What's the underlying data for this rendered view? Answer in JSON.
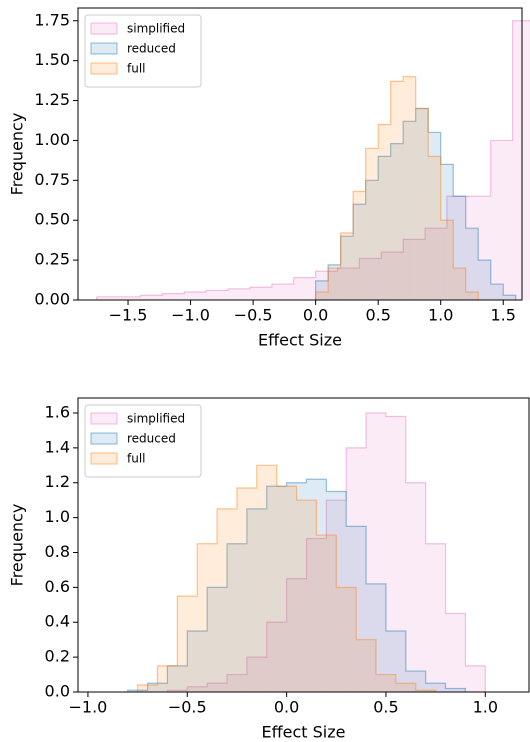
{
  "chart_data": [
    {
      "type": "histogram",
      "xlabel": "Effect Size",
      "ylabel": "Frequency",
      "xlim": [
        -1.9,
        1.65
      ],
      "ylim": [
        0,
        1.83
      ],
      "xticks": [
        {
          "value": -1.5,
          "label": "−1.5"
        },
        {
          "value": -1,
          "label": "−1.0"
        },
        {
          "value": -0.5,
          "label": "−0.5"
        },
        {
          "value": 0,
          "label": "0.0"
        },
        {
          "value": 0.5,
          "label": "0.5"
        },
        {
          "value": 1,
          "label": "1.0"
        },
        {
          "value": 1.5,
          "label": "1.5"
        }
      ],
      "yticks": [
        {
          "value": 0,
          "label": "0.00"
        },
        {
          "value": 0.25,
          "label": "0.25"
        },
        {
          "value": 0.5,
          "label": "0.50"
        },
        {
          "value": 0.75,
          "label": "0.75"
        },
        {
          "value": 1,
          "label": "1.00"
        },
        {
          "value": 1.25,
          "label": "1.25"
        },
        {
          "value": 1.5,
          "label": "1.50"
        },
        {
          "value": 1.75,
          "label": "1.75"
        }
      ],
      "legend": "upper left",
      "series": [
        {
          "name": "simplified",
          "color": "#e377c2",
          "bins": [
            -1.75,
            -1.575,
            -1.4,
            -1.225,
            -1.05,
            -0.875,
            -0.7,
            -0.525,
            -0.35,
            -0.175,
            0,
            0.175,
            0.35,
            0.525,
            0.7,
            0.875,
            1.05,
            1.225,
            1.4,
            1.575,
            1.75
          ],
          "values": [
            0.02,
            0.02,
            0.03,
            0.04,
            0.05,
            0.06,
            0.07,
            0.08,
            0.1,
            0.14,
            0.18,
            0.2,
            0.26,
            0.3,
            0.38,
            0.45,
            0.65,
            0.65,
            1.0,
            1.75
          ]
        },
        {
          "name": "reduced",
          "color": "#1f77b4",
          "bins": [
            0,
            0.1,
            0.2,
            0.3,
            0.4,
            0.5,
            0.6,
            0.7,
            0.8,
            0.9,
            1.0,
            1.1,
            1.2,
            1.3,
            1.4,
            1.5,
            1.6
          ],
          "values": [
            0.12,
            0.22,
            0.4,
            0.6,
            0.75,
            0.9,
            0.98,
            1.12,
            1.2,
            1.05,
            0.85,
            0.65,
            0.45,
            0.25,
            0.1,
            0.03
          ]
        },
        {
          "name": "full",
          "color": "#ff7f0e",
          "bins": [
            0,
            0.1,
            0.2,
            0.3,
            0.4,
            0.5,
            0.6,
            0.7,
            0.8,
            0.9,
            1.0,
            1.1,
            1.2,
            1.3
          ],
          "values": [
            0.05,
            0.2,
            0.42,
            0.68,
            0.95,
            1.1,
            1.37,
            1.4,
            1.2,
            0.9,
            0.5,
            0.2,
            0.05
          ]
        }
      ]
    },
    {
      "type": "histogram",
      "xlabel": "Effect Size",
      "ylabel": "Frequency",
      "xlim": [
        -1.05,
        1.22
      ],
      "ylim": [
        0,
        1.686
      ],
      "xticks": [
        {
          "value": -1,
          "label": "−1.0"
        },
        {
          "value": -0.5,
          "label": "−0.5"
        },
        {
          "value": 0,
          "label": "0.0"
        },
        {
          "value": 0.5,
          "label": "0.5"
        },
        {
          "value": 1,
          "label": "1.0"
        }
      ],
      "yticks": [
        {
          "value": 0,
          "label": "0.0"
        },
        {
          "value": 0.2,
          "label": "0.2"
        },
        {
          "value": 0.4,
          "label": "0.4"
        },
        {
          "value": 0.6,
          "label": "0.6"
        },
        {
          "value": 0.8,
          "label": "0.8"
        },
        {
          "value": 1,
          "label": "1.0"
        },
        {
          "value": 1.2,
          "label": "1.2"
        },
        {
          "value": 1.4,
          "label": "1.4"
        },
        {
          "value": 1.6,
          "label": "1.6"
        }
      ],
      "legend": "upper left",
      "series": [
        {
          "name": "simplified",
          "color": "#e377c2",
          "bins": [
            -0.6,
            -0.5,
            -0.4,
            -0.3,
            -0.2,
            -0.1,
            0,
            0.1,
            0.2,
            0.3,
            0.4,
            0.5,
            0.6,
            0.7,
            0.8,
            0.9,
            1.0
          ],
          "values": [
            0.01,
            0.03,
            0.05,
            0.1,
            0.2,
            0.4,
            0.65,
            0.88,
            1.1,
            1.4,
            1.6,
            1.58,
            1.2,
            0.85,
            0.45,
            0.15
          ]
        },
        {
          "name": "reduced",
          "color": "#1f77b4",
          "bins": [
            -0.8,
            -0.7,
            -0.6,
            -0.5,
            -0.4,
            -0.3,
            -0.2,
            -0.1,
            0,
            0.1,
            0.2,
            0.3,
            0.4,
            0.5,
            0.6,
            0.7,
            0.8,
            0.9
          ],
          "values": [
            0.01,
            0.05,
            0.15,
            0.35,
            0.6,
            0.85,
            1.05,
            1.18,
            1.2,
            1.22,
            1.15,
            0.95,
            0.62,
            0.35,
            0.12,
            0.05,
            0.02
          ]
        },
        {
          "name": "full",
          "color": "#ff7f0e",
          "bins": [
            -0.75,
            -0.65,
            -0.55,
            -0.45,
            -0.35,
            -0.25,
            -0.15,
            -0.05,
            0.05,
            0.15,
            0.25,
            0.35,
            0.45,
            0.55,
            0.65,
            0.75
          ],
          "values": [
            0.04,
            0.15,
            0.55,
            0.85,
            1.05,
            1.17,
            1.3,
            1.18,
            1.1,
            0.9,
            0.6,
            0.3,
            0.1,
            0.05,
            0.01
          ]
        }
      ]
    }
  ]
}
